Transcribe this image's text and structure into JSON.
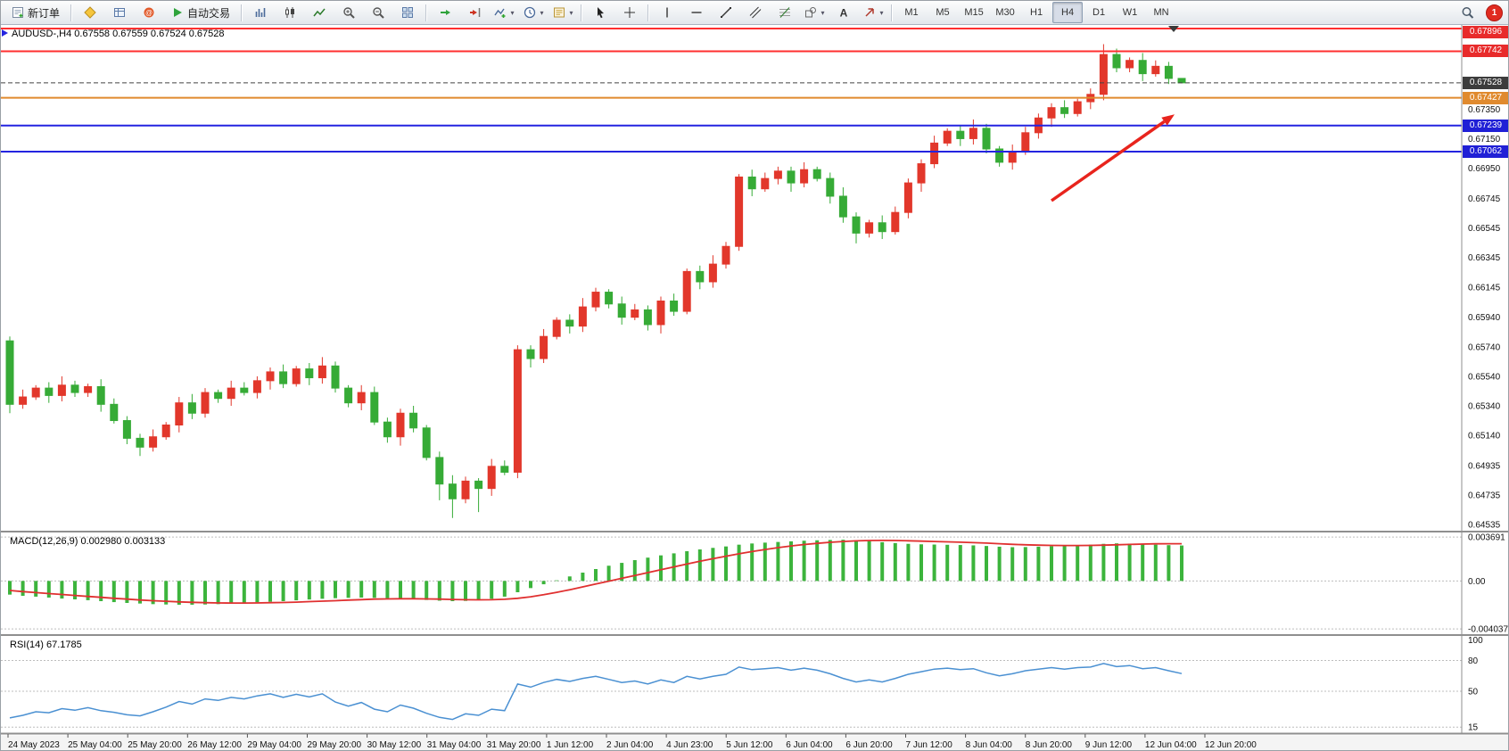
{
  "toolbar": {
    "new_order_label": "新订单",
    "autotrading_label": "自动交易",
    "timeframes": [
      "M1",
      "M5",
      "M15",
      "M30",
      "H1",
      "H4",
      "D1",
      "W1",
      "MN"
    ],
    "active_timeframe": "H4",
    "notification_count": "1"
  },
  "chart_data": {
    "type": "candlestick",
    "title": "AUDUSD-,H4 0.67558 0.67559 0.67524 0.67528",
    "symbol": "AUDUSD-",
    "period": "H4",
    "ohlc": {
      "open": "0.67558",
      "high": "0.67559",
      "low": "0.67524",
      "close": "0.67528"
    },
    "up_color": "#e2372b",
    "down_color": "#36ab36",
    "price_axis": {
      "min": 0.645,
      "max": 0.6792,
      "ticks": [
        "0.67350",
        "0.67150",
        "0.66950",
        "0.66745",
        "0.66545",
        "0.66345",
        "0.66145",
        "0.65940",
        "0.65740",
        "0.65540",
        "0.65340",
        "0.65140",
        "0.64935",
        "0.64735",
        "0.64535"
      ]
    },
    "levels": [
      {
        "price": 0.67896,
        "text": "0.67896",
        "badge": "#e82b2b",
        "line_color": "#ff2f2f",
        "style": "solid",
        "width": 2
      },
      {
        "price": 0.67742,
        "text": "0.67742",
        "badge": "#e82b2b",
        "line_color": "#ff2f2f",
        "style": "solid",
        "width": 2
      },
      {
        "price": 0.67528,
        "text": "0.67528",
        "badge": "#3c3c3c",
        "line_color": "#444444",
        "style": "dashed",
        "width": 1
      },
      {
        "price": 0.67427,
        "text": "0.67427",
        "badge": "#e08a2e",
        "line_color": "#e08a2e",
        "style": "solid",
        "width": 2
      },
      {
        "price": 0.67239,
        "text": "0.67239",
        "badge": "#2020d6",
        "line_color": "#2424e0",
        "style": "solid",
        "width": 2
      },
      {
        "price": 0.67062,
        "text": "0.67062",
        "badge": "#2020d6",
        "line_color": "#2424e0",
        "style": "solid",
        "width": 2
      }
    ],
    "x_labels": [
      "24 May 2023",
      "25 May 04:00",
      "25 May 20:00",
      "26 May 12:00",
      "29 May 04:00",
      "29 May 20:00",
      "30 May 12:00",
      "31 May 04:00",
      "31 May 20:00",
      "1 Jun 12:00",
      "2 Jun 04:00",
      "4 Jun 23:00",
      "5 Jun 12:00",
      "6 Jun 04:00",
      "6 Jun 20:00",
      "7 Jun 12:00",
      "8 Jun 04:00",
      "8 Jun 20:00",
      "9 Jun 12:00",
      "12 Jun 04:00",
      "12 Jun 20:00"
    ],
    "candles": [
      [
        0.6578,
        0.6581,
        0.6529,
        0.6535
      ],
      [
        0.6535,
        0.6545,
        0.6532,
        0.654
      ],
      [
        0.654,
        0.6548,
        0.6538,
        0.6546
      ],
      [
        0.6546,
        0.655,
        0.6536,
        0.6541
      ],
      [
        0.6541,
        0.6554,
        0.6537,
        0.6548
      ],
      [
        0.6548,
        0.6551,
        0.654,
        0.6543
      ],
      [
        0.6543,
        0.6549,
        0.654,
        0.6547
      ],
      [
        0.6547,
        0.6552,
        0.653,
        0.6535
      ],
      [
        0.6535,
        0.6539,
        0.6522,
        0.6524
      ],
      [
        0.6524,
        0.6527,
        0.6508,
        0.6512
      ],
      [
        0.6512,
        0.6515,
        0.65,
        0.6506
      ],
      [
        0.6506,
        0.6518,
        0.6503,
        0.6513
      ],
      [
        0.6513,
        0.6523,
        0.6511,
        0.6521
      ],
      [
        0.6521,
        0.654,
        0.6516,
        0.6536
      ],
      [
        0.6536,
        0.6542,
        0.6525,
        0.6529
      ],
      [
        0.6529,
        0.6546,
        0.6526,
        0.6543
      ],
      [
        0.6543,
        0.6545,
        0.6536,
        0.6539
      ],
      [
        0.6539,
        0.6551,
        0.6534,
        0.6546
      ],
      [
        0.6546,
        0.655,
        0.6541,
        0.6543
      ],
      [
        0.6543,
        0.6554,
        0.6539,
        0.6551
      ],
      [
        0.6551,
        0.656,
        0.6545,
        0.6557
      ],
      [
        0.6557,
        0.6562,
        0.6546,
        0.6549
      ],
      [
        0.6549,
        0.6561,
        0.6547,
        0.6559
      ],
      [
        0.6559,
        0.6563,
        0.6548,
        0.6553
      ],
      [
        0.6553,
        0.6567,
        0.6549,
        0.6561
      ],
      [
        0.6561,
        0.6564,
        0.6543,
        0.6546
      ],
      [
        0.6546,
        0.6548,
        0.6533,
        0.6536
      ],
      [
        0.6536,
        0.6548,
        0.6531,
        0.6543
      ],
      [
        0.6543,
        0.6547,
        0.6521,
        0.6523
      ],
      [
        0.6523,
        0.6526,
        0.6509,
        0.6513
      ],
      [
        0.6513,
        0.6532,
        0.6507,
        0.6529
      ],
      [
        0.6529,
        0.6534,
        0.6516,
        0.6519
      ],
      [
        0.6519,
        0.6521,
        0.6497,
        0.6499
      ],
      [
        0.6499,
        0.6503,
        0.647,
        0.6481
      ],
      [
        0.6481,
        0.6487,
        0.6458,
        0.6471
      ],
      [
        0.6471,
        0.6486,
        0.6468,
        0.6483
      ],
      [
        0.6483,
        0.6485,
        0.6462,
        0.6478
      ],
      [
        0.6478,
        0.6498,
        0.6473,
        0.6493
      ],
      [
        0.6493,
        0.6497,
        0.6487,
        0.6489
      ],
      [
        0.6489,
        0.6575,
        0.6485,
        0.6572
      ],
      [
        0.6572,
        0.6575,
        0.656,
        0.6566
      ],
      [
        0.6566,
        0.6586,
        0.6563,
        0.6581
      ],
      [
        0.6581,
        0.6594,
        0.6579,
        0.6592
      ],
      [
        0.6592,
        0.6596,
        0.6583,
        0.6588
      ],
      [
        0.6588,
        0.6607,
        0.6584,
        0.6601
      ],
      [
        0.6601,
        0.6614,
        0.6598,
        0.6611
      ],
      [
        0.6611,
        0.6613,
        0.66,
        0.6603
      ],
      [
        0.6603,
        0.6608,
        0.6589,
        0.6594
      ],
      [
        0.6594,
        0.6603,
        0.6592,
        0.6599
      ],
      [
        0.6599,
        0.6602,
        0.6585,
        0.6589
      ],
      [
        0.6589,
        0.6608,
        0.6583,
        0.6605
      ],
      [
        0.6605,
        0.661,
        0.6595,
        0.6598
      ],
      [
        0.6598,
        0.6627,
        0.6596,
        0.6625
      ],
      [
        0.6625,
        0.6629,
        0.6613,
        0.6618
      ],
      [
        0.6618,
        0.6636,
        0.6614,
        0.663
      ],
      [
        0.663,
        0.6645,
        0.6627,
        0.6642
      ],
      [
        0.6642,
        0.6691,
        0.6639,
        0.6689
      ],
      [
        0.6689,
        0.6694,
        0.6676,
        0.6681
      ],
      [
        0.6681,
        0.6692,
        0.6679,
        0.6688
      ],
      [
        0.6688,
        0.6696,
        0.6684,
        0.6693
      ],
      [
        0.6693,
        0.6696,
        0.6679,
        0.6685
      ],
      [
        0.6685,
        0.6699,
        0.6682,
        0.6694
      ],
      [
        0.6694,
        0.6696,
        0.6686,
        0.6688
      ],
      [
        0.6688,
        0.6692,
        0.6671,
        0.6676
      ],
      [
        0.6676,
        0.6682,
        0.6658,
        0.6662
      ],
      [
        0.6662,
        0.6665,
        0.6644,
        0.6651
      ],
      [
        0.6651,
        0.666,
        0.6648,
        0.6658
      ],
      [
        0.6658,
        0.6663,
        0.6647,
        0.6652
      ],
      [
        0.6652,
        0.6669,
        0.665,
        0.6665
      ],
      [
        0.6665,
        0.6688,
        0.6661,
        0.6685
      ],
      [
        0.6685,
        0.6701,
        0.6679,
        0.6698
      ],
      [
        0.6698,
        0.6717,
        0.6695,
        0.6712
      ],
      [
        0.6712,
        0.6722,
        0.671,
        0.672
      ],
      [
        0.672,
        0.6724,
        0.671,
        0.6715
      ],
      [
        0.6715,
        0.6728,
        0.6711,
        0.6722
      ],
      [
        0.6722,
        0.6725,
        0.6705,
        0.6708
      ],
      [
        0.6708,
        0.671,
        0.6696,
        0.6699
      ],
      [
        0.6699,
        0.6711,
        0.6694,
        0.6706
      ],
      [
        0.6706,
        0.6723,
        0.6704,
        0.6719
      ],
      [
        0.6719,
        0.6732,
        0.6715,
        0.6729
      ],
      [
        0.6729,
        0.6739,
        0.6723,
        0.6736
      ],
      [
        0.6736,
        0.6741,
        0.6729,
        0.6732
      ],
      [
        0.6732,
        0.6742,
        0.673,
        0.674
      ],
      [
        0.674,
        0.6749,
        0.6735,
        0.6745
      ],
      [
        0.6745,
        0.6779,
        0.6741,
        0.6772
      ],
      [
        0.6772,
        0.6776,
        0.676,
        0.6763
      ],
      [
        0.6763,
        0.677,
        0.676,
        0.6768
      ],
      [
        0.6768,
        0.6773,
        0.6754,
        0.6759
      ],
      [
        0.6759,
        0.6768,
        0.6757,
        0.6764
      ],
      [
        0.6764,
        0.6767,
        0.6752,
        0.67558
      ],
      [
        0.67558,
        0.67559,
        0.67524,
        0.67528
      ]
    ],
    "macd": {
      "label": "MACD(12,26,9) 0.002980 0.003133",
      "values_text": [
        "0.002980",
        "0.003133"
      ],
      "hist_color": "#3cb43c",
      "signal_color": "#e03030",
      "min": -0.0044,
      "max": 0.004,
      "axis_ticks": [
        "0.003691",
        "0.00",
        "-0.004037"
      ],
      "axis_tick_values": [
        0.003691,
        0,
        -0.004037
      ],
      "hist": [
        -0.00115,
        -0.00125,
        -0.00132,
        -0.0014,
        -0.00148,
        -0.00155,
        -0.00162,
        -0.0017,
        -0.00178,
        -0.00185,
        -0.0019,
        -0.00195,
        -0.00198,
        -0.002,
        -0.002,
        -0.00198,
        -0.00195,
        -0.0019,
        -0.00185,
        -0.0018,
        -0.00175,
        -0.0017,
        -0.00163,
        -0.00156,
        -0.0015,
        -0.00145,
        -0.00142,
        -0.0014,
        -0.00142,
        -0.00146,
        -0.0015,
        -0.00155,
        -0.0016,
        -0.00166,
        -0.0017,
        -0.00168,
        -0.00162,
        -0.0015,
        -0.00132,
        -0.00095,
        -0.0006,
        -0.00028,
        5e-05,
        0.00038,
        0.0007,
        0.001,
        0.00128,
        0.00152,
        0.00175,
        0.00196,
        0.00215,
        0.00232,
        0.0025,
        0.00265,
        0.00278,
        0.0029,
        0.00305,
        0.00315,
        0.00322,
        0.00328,
        0.00333,
        0.00338,
        0.00342,
        0.00345,
        0.00347,
        0.00342,
        0.00335,
        0.00326,
        0.00318,
        0.00312,
        0.00308,
        0.00306,
        0.00304,
        0.00302,
        0.00299,
        0.00294,
        0.00288,
        0.00284,
        0.00285,
        0.00288,
        0.00292,
        0.00296,
        0.003,
        0.00305,
        0.00312,
        0.00316,
        0.00314,
        0.0031,
        0.00305,
        0.00301,
        0.00298
      ],
      "signal": [
        -0.0008,
        -0.0009,
        -0.00098,
        -0.00106,
        -0.00114,
        -0.00122,
        -0.0013,
        -0.00138,
        -0.00146,
        -0.00153,
        -0.0016,
        -0.00166,
        -0.00171,
        -0.00176,
        -0.0018,
        -0.00183,
        -0.00185,
        -0.00186,
        -0.00186,
        -0.00185,
        -0.00183,
        -0.00181,
        -0.00178,
        -0.00174,
        -0.0017,
        -0.00166,
        -0.00161,
        -0.00157,
        -0.00153,
        -0.00151,
        -0.0015,
        -0.0015,
        -0.00151,
        -0.00153,
        -0.00156,
        -0.00158,
        -0.00159,
        -0.00158,
        -0.00154,
        -0.00146,
        -0.00133,
        -0.00116,
        -0.00096,
        -0.00074,
        -0.0005,
        -0.00026,
        -2e-05,
        0.00022,
        0.00046,
        0.0007,
        0.00094,
        0.00118,
        0.00142,
        0.00165,
        0.00187,
        0.00208,
        0.00228,
        0.00247,
        0.00264,
        0.0028,
        0.00294,
        0.00306,
        0.00316,
        0.00325,
        0.00332,
        0.00337,
        0.0034,
        0.00341,
        0.0034,
        0.00338,
        0.00335,
        0.00332,
        0.00329,
        0.00326,
        0.00322,
        0.00318,
        0.00313,
        0.00308,
        0.00304,
        0.00301,
        0.00299,
        0.00298,
        0.00298,
        0.00299,
        0.00301,
        0.00304,
        0.00307,
        0.0031,
        0.00312,
        0.00313,
        0.003133
      ]
    },
    "rsi": {
      "label": "RSI(14) 67.1785",
      "value_text": "67.1785",
      "line_color": "#4a90d2",
      "min": 10,
      "max": 103,
      "axis_ticks": [
        "100",
        "80",
        "50",
        "15"
      ],
      "axis_tick_values": [
        100,
        80,
        50,
        15
      ],
      "levels": [
        80,
        50,
        15
      ],
      "values": [
        24,
        26.5,
        30,
        29,
        33,
        31.5,
        34,
        31,
        29.5,
        27,
        26,
        30,
        34.5,
        40,
        37.5,
        42.5,
        41,
        44,
        42.5,
        45.5,
        47.5,
        44,
        47,
        44.5,
        47.5,
        39.5,
        35.5,
        39,
        32.5,
        30,
        36.5,
        33.5,
        28.5,
        24.5,
        22.5,
        28,
        26.5,
        32.5,
        31,
        57,
        54,
        58.5,
        61.5,
        59.5,
        62.5,
        64.5,
        61.5,
        58.5,
        60,
        57,
        61,
        58.5,
        64.5,
        62,
        64.5,
        66.5,
        73.5,
        71,
        72,
        73,
        70.5,
        72.5,
        70.5,
        67,
        62.5,
        59,
        61,
        59,
        62.5,
        66.5,
        69,
        71.5,
        72.5,
        71,
        72,
        68,
        65,
        67,
        70,
        71.5,
        73,
        71.5,
        73,
        73.5,
        77,
        74,
        75,
        72,
        73,
        70,
        67.18
      ]
    }
  }
}
